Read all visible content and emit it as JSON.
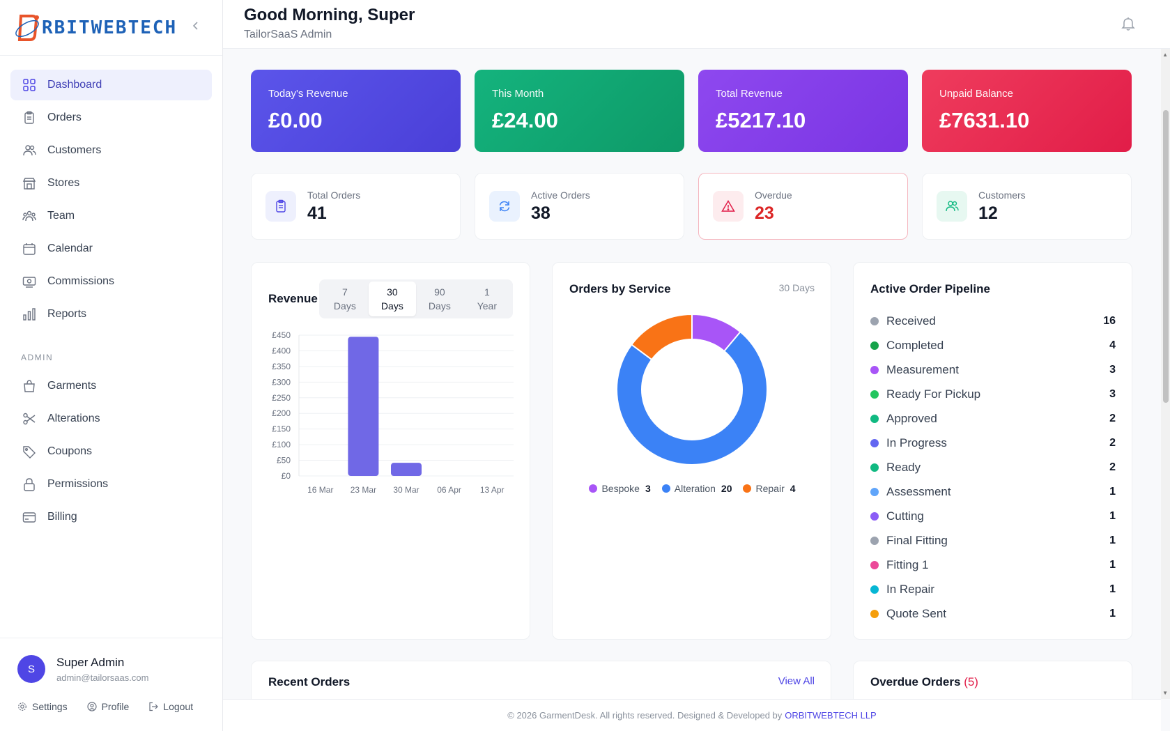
{
  "brand": {
    "logo_text": "RBITWEBTECH"
  },
  "sidebar": {
    "items": [
      {
        "label": "Dashboard",
        "icon": "grid-icon"
      },
      {
        "label": "Orders",
        "icon": "clipboard-icon"
      },
      {
        "label": "Customers",
        "icon": "users-icon"
      },
      {
        "label": "Stores",
        "icon": "store-icon"
      },
      {
        "label": "Team",
        "icon": "team-icon"
      },
      {
        "label": "Calendar",
        "icon": "calendar-icon"
      },
      {
        "label": "Commissions",
        "icon": "cash-icon"
      },
      {
        "label": "Reports",
        "icon": "bar-chart-icon"
      }
    ],
    "admin_section": "ADMIN",
    "admin_items": [
      {
        "label": "Garments",
        "icon": "bag-icon"
      },
      {
        "label": "Alterations",
        "icon": "scissors-icon"
      },
      {
        "label": "Coupons",
        "icon": "tag-icon"
      },
      {
        "label": "Permissions",
        "icon": "lock-icon"
      },
      {
        "label": "Billing",
        "icon": "card-icon"
      }
    ]
  },
  "user": {
    "initial": "S",
    "name": "Super Admin",
    "email": "admin@tailorsaas.com",
    "settings": "Settings",
    "profile": "Profile",
    "logout": "Logout"
  },
  "header": {
    "greeting": "Good Morning, Super",
    "subtitle": "TailorSaaS Admin"
  },
  "stats": [
    {
      "label": "Today's Revenue",
      "value": "£0.00"
    },
    {
      "label": "This Month",
      "value": "£24.00"
    },
    {
      "label": "Total Revenue",
      "value": "£5217.10"
    },
    {
      "label": "Unpaid Balance",
      "value": "£7631.10"
    }
  ],
  "kpis": [
    {
      "label": "Total Orders",
      "value": "41"
    },
    {
      "label": "Active Orders",
      "value": "38"
    },
    {
      "label": "Overdue",
      "value": "23"
    },
    {
      "label": "Customers",
      "value": "12"
    }
  ],
  "revenue": {
    "title": "Revenue",
    "tabs": [
      {
        "l1": "7",
        "l2": "Days"
      },
      {
        "l1": "30",
        "l2": "Days"
      },
      {
        "l1": "90",
        "l2": "Days"
      },
      {
        "l1": "1",
        "l2": "Year"
      }
    ],
    "active_tab": 1
  },
  "chart_data": [
    {
      "type": "bar",
      "title": "Revenue",
      "categories": [
        "16 Mar",
        "23 Mar",
        "30 Mar",
        "06 Apr",
        "13 Apr"
      ],
      "values": [
        0,
        445,
        42,
        0,
        0
      ],
      "y_ticks": [
        "£0",
        "£50",
        "£100",
        "£150",
        "£200",
        "£250",
        "£300",
        "£350",
        "£400",
        "£450"
      ],
      "ylim": [
        0,
        450
      ],
      "color": "#7068e6"
    },
    {
      "type": "pie",
      "title": "Orders by Service",
      "range": "30 Days",
      "series": [
        {
          "name": "Bespoke",
          "value": 3,
          "color": "#a855f7"
        },
        {
          "name": "Alteration",
          "value": 20,
          "color": "#3b82f6"
        },
        {
          "name": "Repair",
          "value": 4,
          "color": "#f97316"
        }
      ]
    }
  ],
  "pipeline": {
    "title": "Active Order Pipeline",
    "items": [
      {
        "label": "Received",
        "count": "16",
        "color": "#9ca3af"
      },
      {
        "label": "Completed",
        "count": "4",
        "color": "#16a34a"
      },
      {
        "label": "Measurement",
        "count": "3",
        "color": "#a855f7"
      },
      {
        "label": "Ready For Pickup",
        "count": "3",
        "color": "#22c55e"
      },
      {
        "label": "Approved",
        "count": "2",
        "color": "#10b981"
      },
      {
        "label": "In Progress",
        "count": "2",
        "color": "#6366f1"
      },
      {
        "label": "Ready",
        "count": "2",
        "color": "#10b981"
      },
      {
        "label": "Assessment",
        "count": "1",
        "color": "#60a5fa"
      },
      {
        "label": "Cutting",
        "count": "1",
        "color": "#8b5cf6"
      },
      {
        "label": "Final Fitting",
        "count": "1",
        "color": "#9ca3af"
      },
      {
        "label": "Fitting 1",
        "count": "1",
        "color": "#ec4899"
      },
      {
        "label": "In Repair",
        "count": "1",
        "color": "#06b6d4"
      },
      {
        "label": "Quote Sent",
        "count": "1",
        "color": "#f59e0b"
      }
    ]
  },
  "recent": {
    "title": "Recent Orders",
    "view_all": "View All"
  },
  "overdue": {
    "title": "Overdue Orders",
    "count": "(5)"
  },
  "footer": {
    "text": "© 2026 GarmentDesk. All rights reserved. Designed & Developed by",
    "brand": "ORBITWEBTECH LLP"
  }
}
